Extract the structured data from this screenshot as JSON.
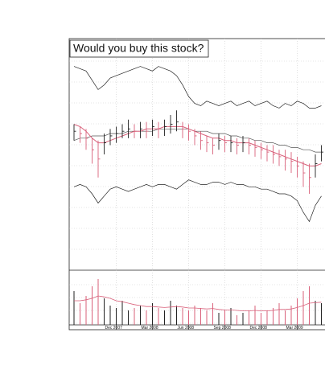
{
  "chart_data": {
    "type": "ohlc",
    "title": "Would you buy this stock?",
    "categories": [
      null,
      null,
      null,
      null,
      null,
      null,
      null,
      "Dec 2007",
      null,
      null,
      null,
      null,
      null,
      "Mar 2008",
      null,
      null,
      null,
      null,
      null,
      "Jun 2008",
      null,
      null,
      null,
      null,
      null,
      "Sep 2008",
      null,
      null,
      null,
      null,
      null,
      "Dec 2008",
      null,
      null,
      null,
      null,
      null,
      "Mar 2009",
      null,
      null,
      null,
      null
    ],
    "high": [
      63,
      62,
      61,
      57,
      56,
      59,
      61,
      62,
      63,
      65,
      63,
      64,
      64,
      65,
      64,
      65,
      67,
      69,
      64,
      63,
      61,
      60,
      58,
      57,
      59,
      58,
      58,
      57,
      58,
      57,
      56,
      55,
      54,
      54,
      52,
      52,
      51,
      49,
      47,
      46,
      50,
      54
    ],
    "low": [
      56,
      55,
      52,
      46,
      40,
      50,
      54,
      55,
      57,
      57,
      57,
      57,
      57,
      58,
      57,
      58,
      59,
      60,
      57,
      56,
      54,
      52,
      51,
      50,
      52,
      51,
      51,
      50,
      51,
      50,
      49,
      48,
      47,
      46,
      45,
      43,
      42,
      40,
      36,
      33,
      40,
      47
    ],
    "close": [
      60,
      59,
      57,
      52,
      48,
      55,
      58,
      59,
      60,
      61,
      60,
      61,
      60,
      62,
      61,
      62,
      63,
      64,
      61,
      60,
      58,
      56,
      55,
      54,
      56,
      55,
      55,
      54,
      55,
      54,
      53,
      52,
      51,
      50,
      49,
      48,
      47,
      45,
      42,
      40,
      46,
      51
    ],
    "up_color": "#222222",
    "down_color": "#d9607a",
    "overlays": [
      {
        "color": "#222222",
        "values": [
          88,
          87,
          86,
          82,
          78,
          80,
          83,
          84,
          85,
          86,
          87,
          88,
          87,
          86,
          88,
          87,
          86,
          84,
          80,
          75,
          72,
          71,
          73,
          72,
          71,
          72,
          73,
          71,
          72,
          73,
          71,
          72,
          73,
          71,
          70,
          72,
          71,
          73,
          72,
          70,
          70,
          71
        ]
      },
      {
        "color": "#222222",
        "values": [
          36,
          37,
          36,
          33,
          29,
          32,
          35,
          36,
          35,
          34,
          35,
          36,
          37,
          36,
          37,
          37,
          36,
          35,
          37,
          39,
          38,
          37,
          37,
          38,
          38,
          37,
          38,
          37,
          37,
          36,
          36,
          35,
          35,
          34,
          33,
          33,
          32,
          30,
          25,
          21,
          28,
          32
        ]
      },
      {
        "color": "#555555",
        "values": [
          56,
          57,
          57,
          58,
          58,
          58,
          59,
          59,
          59,
          60,
          60,
          60,
          60,
          60,
          61,
          61,
          61,
          61,
          61,
          61,
          60,
          60,
          60,
          59,
          59,
          59,
          58,
          58,
          57,
          57,
          56,
          56,
          55,
          55,
          54,
          54,
          53,
          53,
          52,
          52,
          51,
          51
        ]
      },
      {
        "color": "#d9607a",
        "values": [
          63,
          62,
          60,
          57,
          55,
          55,
          56,
          57,
          58,
          59,
          60,
          60,
          61,
          61,
          61,
          62,
          62,
          62,
          62,
          61,
          60,
          59,
          58,
          57,
          57,
          56,
          56,
          55,
          55,
          55,
          54,
          53,
          52,
          51,
          50,
          49,
          48,
          47,
          46,
          45,
          45,
          46
        ]
      }
    ],
    "ylim": [
      0,
      100
    ],
    "volume": {
      "values": [
        70,
        45,
        60,
        80,
        95,
        55,
        40,
        35,
        50,
        30,
        35,
        40,
        30,
        45,
        35,
        30,
        50,
        40,
        35,
        30,
        40,
        35,
        30,
        45,
        25,
        30,
        35,
        20,
        25,
        30,
        40,
        25,
        30,
        35,
        45,
        30,
        40,
        55,
        70,
        80,
        50,
        45
      ],
      "ma": [
        50,
        50,
        52,
        55,
        60,
        58,
        55,
        50,
        48,
        45,
        42,
        40,
        38,
        38,
        37,
        36,
        37,
        38,
        37,
        35,
        35,
        34,
        33,
        34,
        32,
        31,
        31,
        30,
        29,
        29,
        30,
        29,
        29,
        30,
        32,
        32,
        33,
        36,
        40,
        45,
        46,
        47
      ],
      "ma_color": "#d9607a",
      "ylim": [
        0,
        100
      ]
    }
  }
}
